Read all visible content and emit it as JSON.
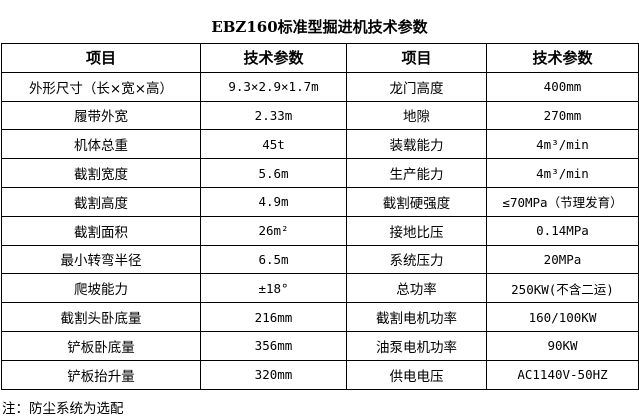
{
  "title": "EBZ160标准型掘进机技术参数",
  "headers": [
    "项目",
    "技术参数",
    "项目",
    "技术参数"
  ],
  "rows": [
    [
      "外形尺寸（长×宽×高）",
      "9.3×2.9×1.7m",
      "龙门高度",
      "400mm"
    ],
    [
      "履带外宽",
      "2.33m",
      "地隙",
      "270mm"
    ],
    [
      "机体总重",
      "45t",
      "装载能力",
      "4m³/min"
    ],
    [
      "截割宽度",
      "5.6m",
      "生产能力",
      "4m³/min"
    ],
    [
      "截割高度",
      "4.9m",
      "截割硬强度",
      "≤70MPa（节理发育）"
    ],
    [
      "截割面积",
      "26m²",
      "接地比压",
      "0.14MPa"
    ],
    [
      "最小转弯半径",
      "6.5m",
      "系统压力",
      "20MPa"
    ],
    [
      "爬坡能力",
      "±18°",
      "总功率",
      "250KW(不含二运)"
    ],
    [
      "截割头卧底量",
      "216mm",
      "截割电机功率",
      "160/100KW"
    ],
    [
      "铲板卧底量",
      "356mm",
      "油泵电机功率",
      "90KW"
    ],
    [
      "铲板抬升量",
      "320mm",
      "供电电压",
      "AC1140V-50HZ"
    ]
  ],
  "note": "注：防尘系统为选配"
}
